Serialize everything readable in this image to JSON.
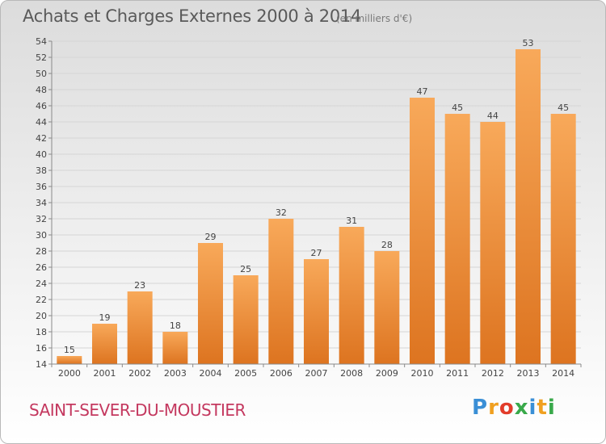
{
  "header": {
    "title": "Achats et Charges Externes 2000 à 2014",
    "subtitle": "(en milliers d'€)"
  },
  "footer": {
    "commune": "SAINT-SEVER-DU-MOUSTIER",
    "logo_letters": [
      "P",
      "r",
      "o",
      "x",
      "i",
      "t",
      "i"
    ],
    "logo_colors": [
      "#3a8fd6",
      "#f0a020",
      "#e23c2a",
      "#39a94a",
      "#3a8fd6",
      "#f0a020",
      "#39a94a"
    ]
  },
  "colors": {
    "bar_light": "#f8a95a",
    "bar_dark": "#dd7420",
    "grid": "#d5d5d5",
    "axis": "#8a8a8a",
    "text": "#444444"
  },
  "chart_data": {
    "type": "bar",
    "categories": [
      "2000",
      "2001",
      "2002",
      "2003",
      "2004",
      "2005",
      "2006",
      "2007",
      "2008",
      "2009",
      "2010",
      "2011",
      "2012",
      "2013",
      "2014"
    ],
    "values": [
      15,
      19,
      23,
      18,
      29,
      25,
      32,
      27,
      31,
      28,
      47,
      45,
      44,
      53,
      45
    ],
    "ylim": [
      14,
      54
    ],
    "yticks": [
      14,
      16,
      18,
      20,
      22,
      24,
      26,
      28,
      30,
      32,
      34,
      36,
      38,
      40,
      42,
      44,
      46,
      48,
      50,
      52,
      54
    ],
    "grid": true,
    "data_labels": true
  }
}
